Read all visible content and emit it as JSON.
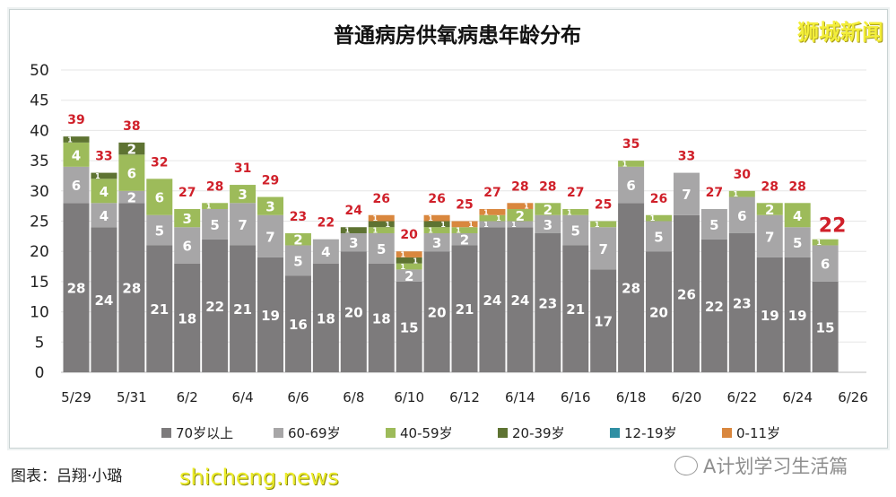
{
  "chart_data": {
    "type": "bar",
    "stacked": true,
    "title": "普通病房供氧病患年龄分布",
    "categories": [
      "5/29",
      "5/30",
      "5/31",
      "6/1",
      "6/2",
      "6/3",
      "6/4",
      "6/5",
      "6/6",
      "6/7",
      "6/8",
      "6/9",
      "6/10",
      "6/11",
      "6/12",
      "6/13",
      "6/14",
      "6/15",
      "6/16",
      "6/17",
      "6/18",
      "6/19",
      "6/20",
      "6/21",
      "6/22",
      "6/23",
      "6/24",
      "6/25"
    ],
    "x_tick_labels": [
      "5/29",
      "5/31",
      "6/2",
      "6/4",
      "6/6",
      "6/8",
      "6/10",
      "6/12",
      "6/14",
      "6/16",
      "6/18",
      "6/20",
      "6/22",
      "6/24",
      "6/26"
    ],
    "ylim": [
      0,
      50
    ],
    "y_ticks": [
      0,
      5,
      10,
      15,
      20,
      25,
      30,
      35,
      40,
      45,
      50
    ],
    "grid": true,
    "legend_position": "bottom",
    "series": [
      {
        "name": "70岁以上",
        "color": "#7d7b7c",
        "values": [
          28,
          24,
          28,
          21,
          18,
          22,
          21,
          19,
          16,
          18,
          20,
          18,
          15,
          20,
          21,
          24,
          24,
          23,
          21,
          17,
          28,
          20,
          26,
          22,
          23,
          19,
          19,
          15
        ]
      },
      {
        "name": "60-69岁",
        "color": "#a7a6a7",
        "values": [
          6,
          4,
          2,
          5,
          6,
          5,
          7,
          7,
          5,
          4,
          3,
          5,
          2,
          3,
          2,
          1,
          1,
          3,
          5,
          7,
          6,
          5,
          7,
          5,
          6,
          7,
          5,
          6
        ]
      },
      {
        "name": "40-59岁",
        "color": "#9dbb5a",
        "values": [
          4,
          4,
          6,
          6,
          3,
          1,
          3,
          3,
          2,
          0,
          0,
          1,
          1,
          1,
          1,
          1,
          2,
          2,
          1,
          1,
          1,
          1,
          0,
          0,
          1,
          2,
          4,
          1
        ]
      },
      {
        "name": "20-39岁",
        "color": "#5e7332",
        "values": [
          1,
          1,
          2,
          0,
          0,
          0,
          0,
          0,
          0,
          0,
          1,
          1,
          1,
          1,
          0,
          0,
          0,
          0,
          0,
          0,
          0,
          0,
          0,
          0,
          0,
          0,
          0,
          0
        ]
      },
      {
        "name": "12-19岁",
        "color": "#2f8fa3",
        "values": [
          0,
          0,
          0,
          0,
          0,
          0,
          0,
          0,
          0,
          0,
          0,
          0,
          0,
          0,
          0,
          0,
          0,
          0,
          0,
          0,
          0,
          0,
          0,
          0,
          0,
          0,
          0,
          0
        ]
      },
      {
        "name": "0-11岁",
        "color": "#d9873e",
        "values": [
          0,
          0,
          0,
          0,
          0,
          0,
          0,
          0,
          0,
          0,
          0,
          1,
          1,
          1,
          1,
          1,
          1,
          0,
          0,
          0,
          0,
          0,
          0,
          0,
          0,
          0,
          0,
          0
        ]
      }
    ],
    "totals": [
      39,
      33,
      38,
      32,
      27,
      28,
      31,
      29,
      23,
      22,
      24,
      26,
      20,
      26,
      25,
      27,
      28,
      28,
      27,
      25,
      35,
      26,
      33,
      27,
      30,
      28,
      28,
      22
    ],
    "total_label_color": "#d0202a"
  },
  "watermarks": {
    "top_right": "狮城新闻",
    "credit": "图表：吕翔·小璐",
    "site": "shicheng.news",
    "wechat": "A计划学习生活篇"
  }
}
